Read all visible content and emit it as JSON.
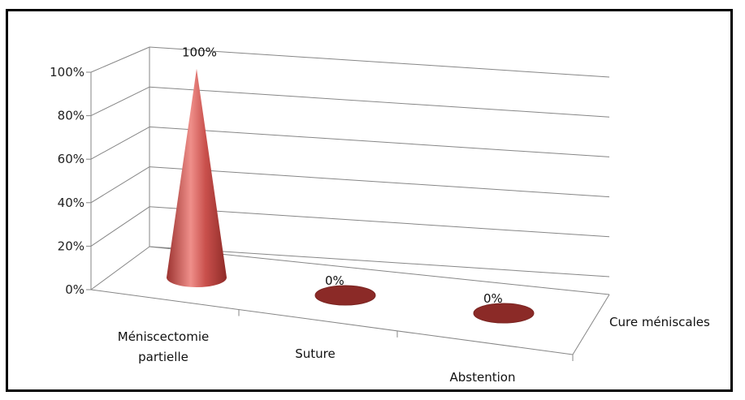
{
  "chart_data": {
    "type": "bar",
    "style": "3d-cone",
    "series": [
      {
        "name": "Cure méniscales",
        "values": [
          100,
          0,
          0
        ],
        "data_labels": [
          "100%",
          "0%",
          "0%"
        ]
      }
    ],
    "categories": [
      [
        "Méniscectomie",
        "partielle"
      ],
      [
        "Suture"
      ],
      [
        "Abstention"
      ]
    ],
    "y_ticks": [
      "0%",
      "20%",
      "40%",
      "60%",
      "80%",
      "100%"
    ],
    "ylim": [
      0,
      100
    ],
    "depth_axis_label": "Cure méniscales",
    "grid": true,
    "color": "#c0504d",
    "color_dark": "#8b2a27",
    "color_light": "#e88a86"
  }
}
